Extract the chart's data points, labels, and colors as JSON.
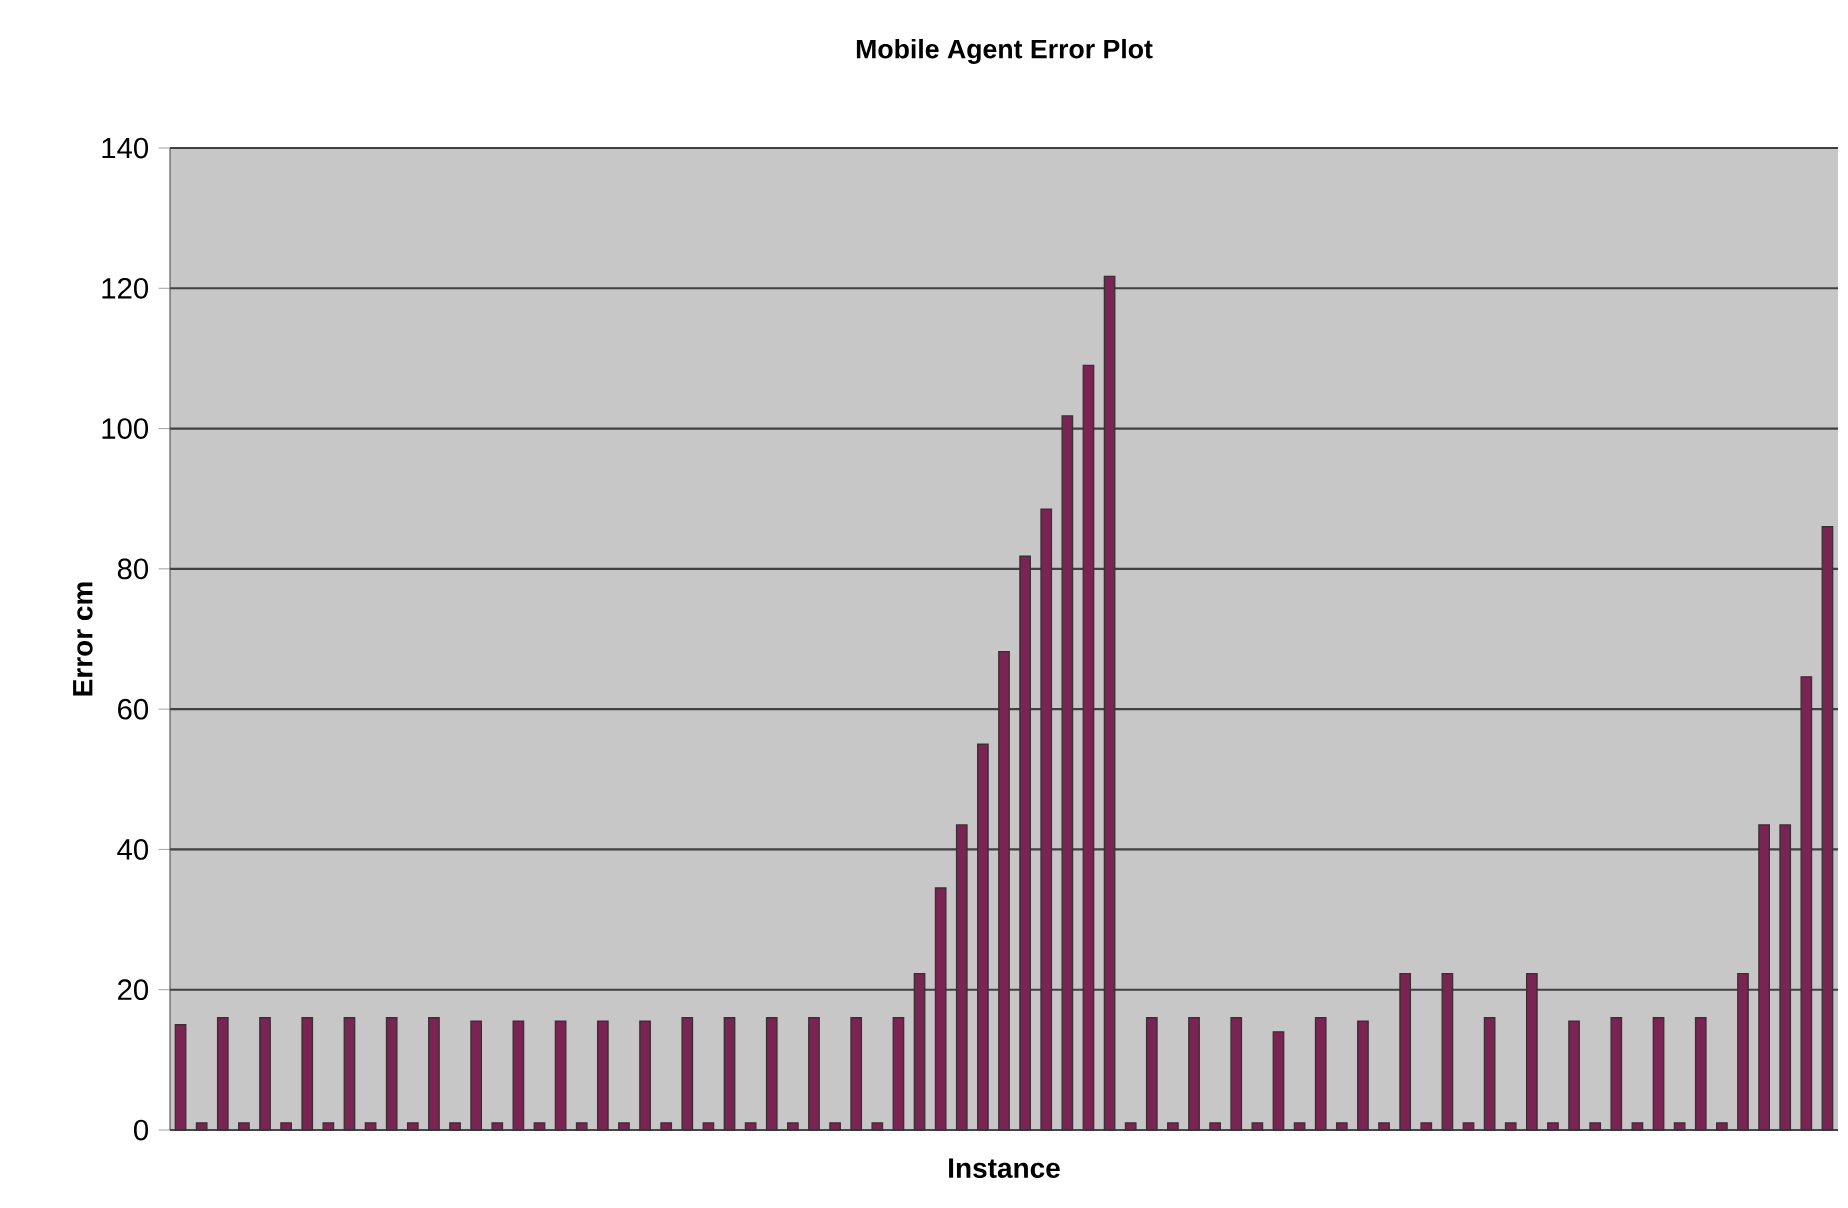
{
  "chart_data": {
    "type": "bar",
    "title": "Mobile Agent Error Plot",
    "xlabel": "Instance",
    "ylabel": "Error cm",
    "categories": [
      null,
      null,
      null,
      null,
      null,
      null,
      null,
      null,
      null,
      null,
      null,
      null,
      null,
      null,
      null,
      null,
      null,
      null,
      null,
      null,
      null,
      null,
      null,
      null,
      null,
      null,
      null,
      null,
      null,
      null,
      null,
      null,
      null,
      null,
      null,
      null,
      null,
      null,
      null,
      null,
      null,
      null,
      null,
      null,
      null,
      null,
      null,
      null,
      null,
      null,
      null,
      null,
      null,
      null,
      null,
      null,
      null,
      null,
      null,
      null,
      null,
      null,
      null,
      null,
      null,
      null,
      null,
      null,
      null,
      null,
      null,
      null,
      null,
      null,
      null,
      null,
      null,
      null,
      null
    ],
    "values": [
      15,
      1,
      16,
      1,
      16,
      1,
      16,
      1,
      16,
      1,
      16,
      1,
      16,
      1,
      15.5,
      1,
      15.5,
      1,
      15.5,
      1,
      15.5,
      1,
      15.5,
      1,
      16,
      1,
      16,
      1,
      16,
      1,
      16,
      1,
      16,
      1,
      16,
      22.3,
      34.5,
      43.5,
      55,
      68.2,
      81.8,
      88.5,
      101.8,
      109,
      121.7,
      1,
      16,
      1,
      16,
      1,
      16,
      1,
      14,
      1,
      16,
      1,
      15.5,
      1,
      22.3,
      1,
      22.3,
      1,
      16,
      1,
      22.3,
      1,
      15.5,
      1,
      16,
      1,
      16,
      1,
      16,
      1,
      22.3,
      43.5,
      43.5,
      64.6,
      86
    ],
    "color": "#7b2352",
    "ylim": [
      0,
      140
    ],
    "yticks": [
      0,
      20,
      40,
      60,
      80,
      100,
      120,
      140
    ],
    "grid": "y",
    "tick_labels": "y"
  }
}
